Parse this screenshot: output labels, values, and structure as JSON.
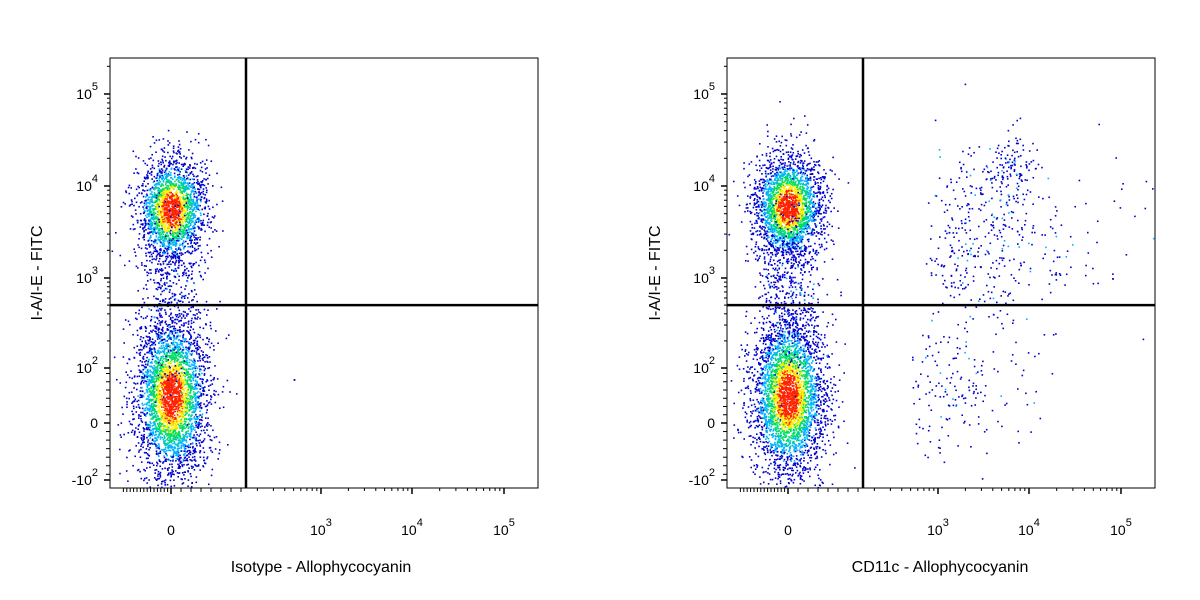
{
  "chart_data": [
    {
      "type": "scatter",
      "subtype": "flow-cytometry-density-dot-plot",
      "xlabel": "Isotype - Allophycocyanin",
      "ylabel": "I-A/I-E - FITC",
      "x_scale": "biexponential",
      "y_scale": "biexponential",
      "x_ticks": [
        {
          "value": 0,
          "label": "0"
        },
        {
          "value": 1000,
          "base": "10",
          "exp": "3"
        },
        {
          "value": 10000,
          "base": "10",
          "exp": "4"
        },
        {
          "value": 100000,
          "base": "10",
          "exp": "5"
        }
      ],
      "y_ticks": [
        {
          "value": -100,
          "base": "-10",
          "exp": "2"
        },
        {
          "value": 0,
          "label": "0"
        },
        {
          "value": 100,
          "base": "10",
          "exp": "2"
        },
        {
          "value": 1000,
          "base": "10",
          "exp": "3"
        },
        {
          "value": 10000,
          "base": "10",
          "exp": "4"
        },
        {
          "value": 100000,
          "base": "10",
          "exp": "5"
        }
      ],
      "xlim": [
        -300,
        200000
      ],
      "ylim": [
        -130,
        250000
      ],
      "gates": {
        "x": 150,
        "y": 500
      },
      "populations": [
        {
          "x_center": 0,
          "y_center": 5500,
          "points": 2200,
          "spread": "tight"
        },
        {
          "x_center": 0,
          "y_center": 50,
          "points": 3400,
          "spread": "elongated"
        },
        {
          "x_center": 0,
          "y_center": 800,
          "points": 350,
          "spread": "bridge"
        }
      ],
      "outliers": [
        {
          "x": 500,
          "y": 80
        }
      ],
      "color_scale": [
        "#0000cc",
        "#00b4ff",
        "#00dd66",
        "#ffee00",
        "#ff2200"
      ]
    },
    {
      "type": "scatter",
      "subtype": "flow-cytometry-density-dot-plot",
      "xlabel": "CD11c - Allophycocyanin",
      "ylabel": "I-A/I-E - FITC",
      "x_scale": "biexponential",
      "y_scale": "biexponential",
      "x_ticks": [
        {
          "value": 0,
          "label": "0"
        },
        {
          "value": 1000,
          "base": "10",
          "exp": "3"
        },
        {
          "value": 10000,
          "base": "10",
          "exp": "4"
        },
        {
          "value": 100000,
          "base": "10",
          "exp": "5"
        }
      ],
      "y_ticks": [
        {
          "value": -100,
          "base": "-10",
          "exp": "2"
        },
        {
          "value": 0,
          "label": "0"
        },
        {
          "value": 100,
          "base": "10",
          "exp": "2"
        },
        {
          "value": 1000,
          "base": "10",
          "exp": "3"
        },
        {
          "value": 10000,
          "base": "10",
          "exp": "4"
        },
        {
          "value": 100000,
          "base": "10",
          "exp": "5"
        }
      ],
      "xlim": [
        -300,
        200000
      ],
      "ylim": [
        -130,
        250000
      ],
      "gates": {
        "x": 150,
        "y": 500
      },
      "populations": [
        {
          "x_center": 0,
          "y_center": 6000,
          "points": 2600,
          "spread": "tight"
        },
        {
          "x_center": 0,
          "y_center": 50,
          "points": 3600,
          "spread": "elongated"
        },
        {
          "x_center": 0,
          "y_center": 800,
          "points": 400,
          "spread": "bridge"
        },
        {
          "x_center": 700,
          "y_center": 3000,
          "points": 420,
          "spread": "diffuse-upper-right"
        },
        {
          "x_center": 6000,
          "y_center": 15000,
          "points": 110,
          "spread": "small-cluster"
        },
        {
          "x_center": 500,
          "y_center": 60,
          "points": 170,
          "spread": "diffuse-lower-right"
        }
      ],
      "outliers": [
        {
          "x": 8000,
          "y": 1400
        },
        {
          "x": 80000,
          "y": 1000
        },
        {
          "x": 4000,
          "y": 400
        }
      ],
      "color_scale": [
        "#0000cc",
        "#00b4ff",
        "#00dd66",
        "#ffee00",
        "#ff2200"
      ]
    }
  ]
}
